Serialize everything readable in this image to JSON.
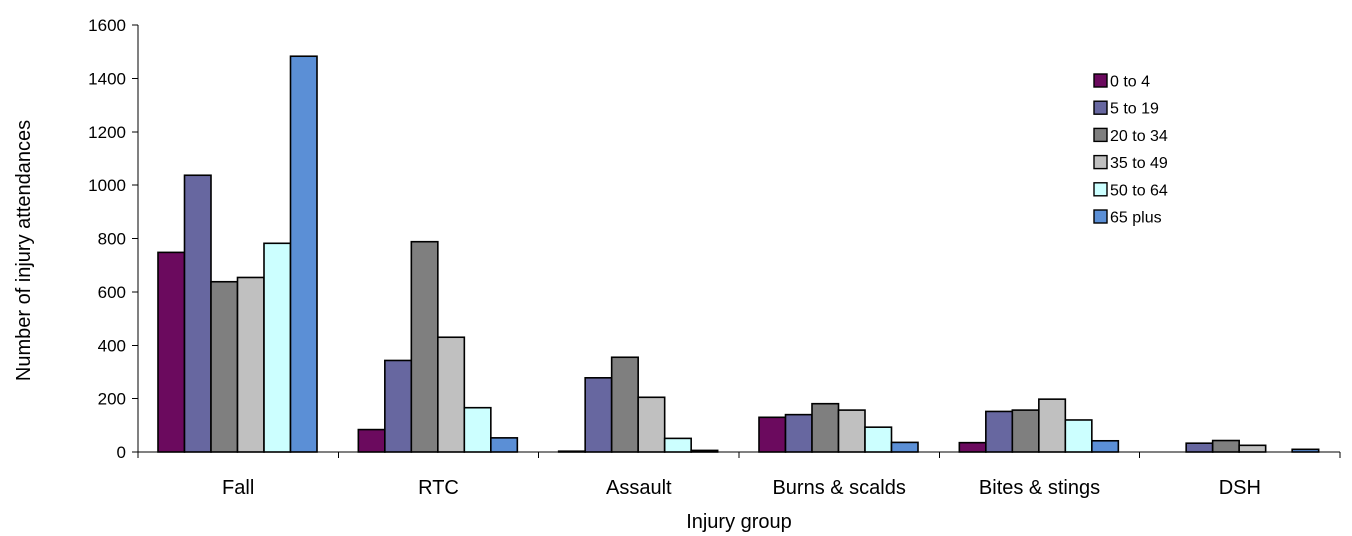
{
  "chart_data": {
    "type": "bar",
    "categories": [
      "Fall",
      "RTC",
      "Assault",
      "Burns & scalds",
      "Bites & stings",
      "DSH"
    ],
    "series": [
      {
        "name": "0 to 4",
        "color": "#6B0A5E",
        "values": [
          748,
          84,
          3,
          130,
          35,
          0
        ]
      },
      {
        "name": "5 to 19",
        "color": "#6767A0",
        "values": [
          1037,
          343,
          278,
          140,
          152,
          33
        ]
      },
      {
        "name": "20 to 34",
        "color": "#7F7F7F",
        "values": [
          638,
          788,
          355,
          181,
          157,
          43
        ]
      },
      {
        "name": "35 to 49",
        "color": "#C0C0C0",
        "values": [
          654,
          430,
          205,
          157,
          198,
          25
        ]
      },
      {
        "name": "50 to 64",
        "color": "#CCFFFF",
        "values": [
          782,
          166,
          51,
          93,
          120,
          0
        ]
      },
      {
        "name": "65 plus",
        "color": "#5B8FD6",
        "values": [
          1483,
          53,
          6,
          36,
          42,
          10
        ]
      }
    ],
    "xlabel": "Injury group",
    "ylabel": "Number of injury attendances",
    "ylim": [
      0,
      1600
    ],
    "yticks": [
      0,
      200,
      400,
      600,
      800,
      1000,
      1200,
      1400,
      1600
    ],
    "grid": false,
    "legend_position": "top-right"
  }
}
